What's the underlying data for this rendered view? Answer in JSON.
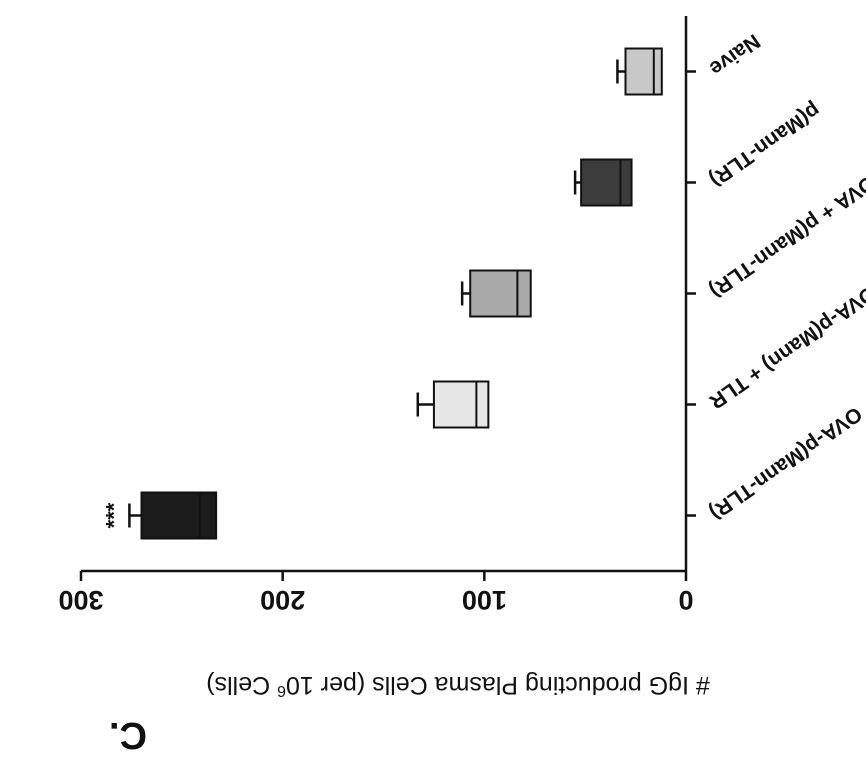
{
  "panel_label": "C.",
  "chart_data": {
    "type": "bar",
    "orientation": "horizontal",
    "image_rotated_180": true,
    "ylabel": "# IgG  producting Plasma Cells (per 10",
    "ylabel_superscript": "6",
    "ylabel_suffix": " Cells)",
    "ylim": [
      0,
      300
    ],
    "ticks": [
      0,
      100,
      200,
      300
    ],
    "tick_labels": [
      "0",
      "100",
      "200",
      "300"
    ],
    "categories": [
      "OVA-p(Mann-TLR)",
      "OVA-p(Mann) + TLR",
      "OVA + p(Mann-TLR)",
      "p(Mann-TLR)",
      "Naive"
    ],
    "values": [
      270,
      125,
      107,
      52,
      30
    ],
    "error_upper": [
      276,
      133,
      111,
      55,
      34
    ],
    "error_lower": [
      233,
      98,
      77,
      27,
      12
    ],
    "fill_colors": [
      "#1b1b1b",
      "#e6e6e6",
      "#a9a9a9",
      "#3c3c3c",
      "#c8c8c8"
    ],
    "annotations": [
      {
        "category": "OVA-p(Mann-TLR)",
        "text": "***"
      }
    ],
    "grid": false
  }
}
